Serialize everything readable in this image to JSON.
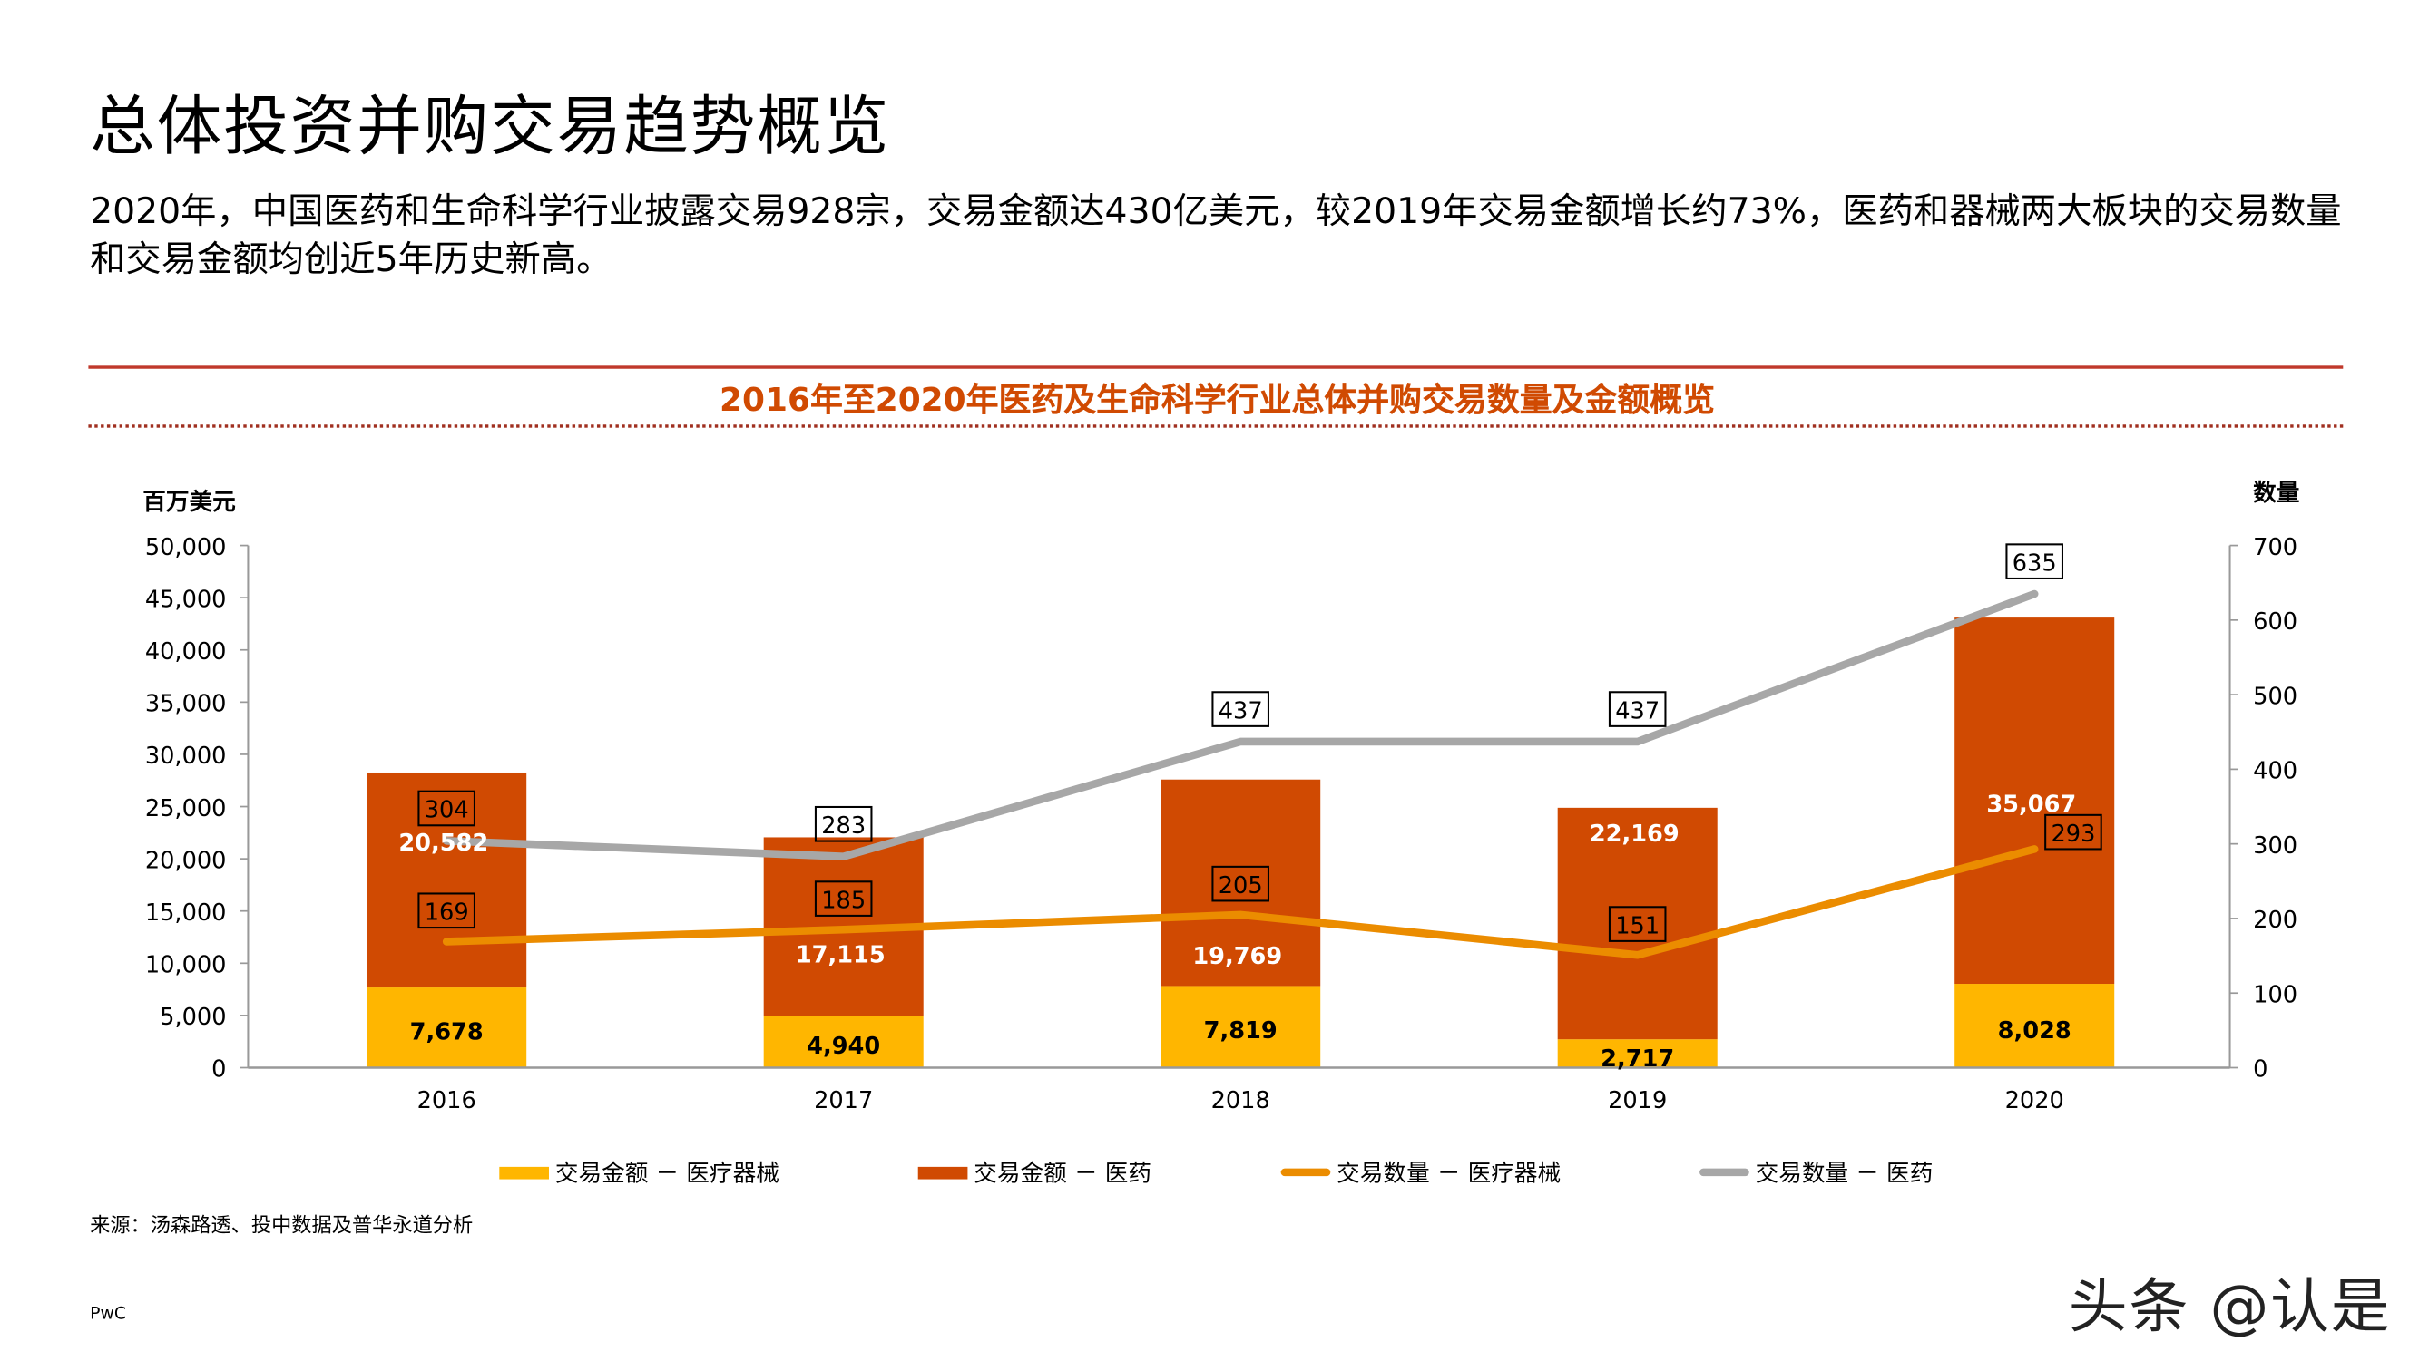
{
  "page": {
    "title": "总体投资并购交易趋势概览",
    "description": "2020年，中国医药和生命科学行业披露交易928宗，交易金额达430亿美元，较2019年交易金额增长约73%，医药和器械两大板块的交易数量和交易金额均创近5年历史新高。",
    "source": "来源：汤森路透、投中数据及普华永道分析",
    "footer": "PwC",
    "watermark": "头条 @认是"
  },
  "chart_data": {
    "type": "bar+line",
    "title": "2016年至2020年医药及生命科学行业总体并购交易数量及金额概览",
    "ylabel_left": "百万美元",
    "ylabel_right": "数量",
    "categories": [
      "2016",
      "2017",
      "2018",
      "2019",
      "2020"
    ],
    "ylim_left": [
      0,
      50000
    ],
    "ylim_right": [
      0,
      700
    ],
    "yticks_left": [
      "0",
      "5,000",
      "10,000",
      "15,000",
      "20,000",
      "25,000",
      "30,000",
      "35,000",
      "40,000",
      "45,000",
      "50,000"
    ],
    "yticks_right": [
      "0",
      "100",
      "200",
      "300",
      "400",
      "500",
      "600",
      "700"
    ],
    "grid": false,
    "legend_position": "bottom",
    "series": [
      {
        "name": "交易金额 － 医疗器械",
        "kind": "stacked-bar",
        "axis": "left",
        "color": "#ffb600",
        "values": [
          7678,
          4940,
          7819,
          2717,
          8028
        ],
        "labels": [
          "7,678",
          "4,940",
          "7,819",
          "2,717",
          "8,028"
        ]
      },
      {
        "name": "交易金额 － 医药",
        "kind": "stacked-bar",
        "axis": "left",
        "color": "#d04a02",
        "values": [
          20582,
          17115,
          19769,
          22169,
          35067
        ],
        "labels": [
          "20,582",
          "17,115",
          "19,769",
          "22,169",
          "35,067"
        ]
      },
      {
        "name": "交易数量 － 医疗器械",
        "kind": "line",
        "axis": "right",
        "color": "#eb8c00",
        "values": [
          169,
          185,
          205,
          151,
          293
        ],
        "labels": [
          "169",
          "185",
          "205",
          "151",
          "293"
        ]
      },
      {
        "name": "交易数量 － 医药",
        "kind": "line",
        "axis": "right",
        "color": "#a7a7a7",
        "values": [
          304,
          283,
          437,
          437,
          635
        ],
        "labels": [
          "304",
          "283",
          "437",
          "437",
          "635"
        ]
      }
    ]
  }
}
